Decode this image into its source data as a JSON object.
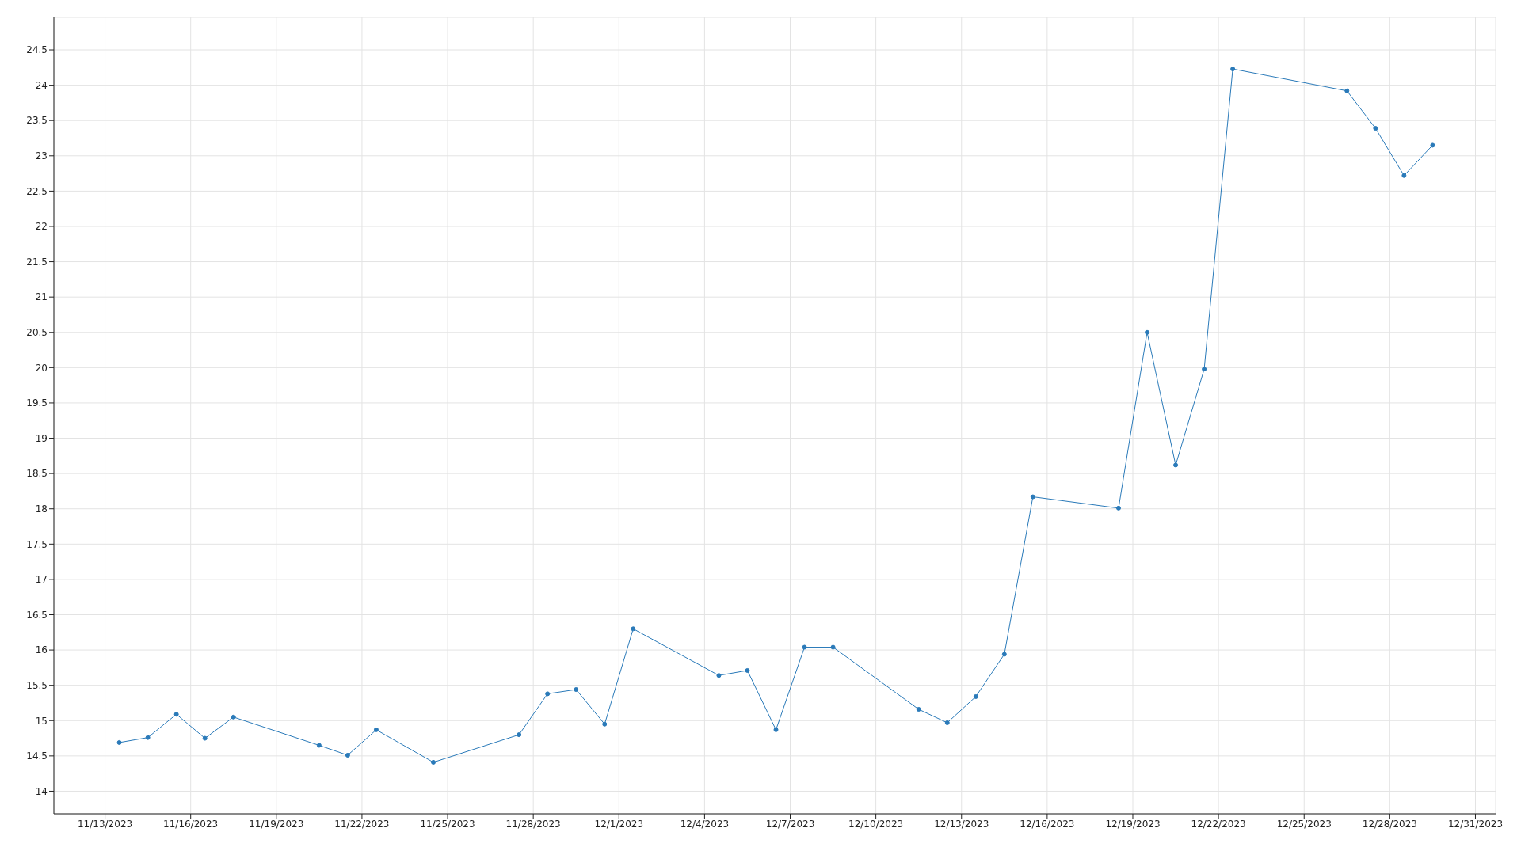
{
  "chart_data": {
    "type": "line",
    "x": [
      "2023-11-13T12:00",
      "2023-11-14T12:00",
      "2023-11-15T12:00",
      "2023-11-16T12:00",
      "2023-11-17T12:00",
      "2023-11-20T12:00",
      "2023-11-21T12:00",
      "2023-11-22T12:00",
      "2023-11-24T12:00",
      "2023-11-27T12:00",
      "2023-11-28T12:00",
      "2023-11-29T12:00",
      "2023-11-30T12:00",
      "2023-12-01T12:00",
      "2023-12-04T12:00",
      "2023-12-05T12:00",
      "2023-12-06T12:00",
      "2023-12-07T12:00",
      "2023-12-08T12:00",
      "2023-12-11T12:00",
      "2023-12-12T12:00",
      "2023-12-13T12:00",
      "2023-12-14T12:00",
      "2023-12-15T12:00",
      "2023-12-18T12:00",
      "2023-12-19T12:00",
      "2023-12-20T12:00",
      "2023-12-21T12:00",
      "2023-12-22T12:00",
      "2023-12-26T12:00",
      "2023-12-27T12:00",
      "2023-12-28T12:00",
      "2023-12-29T12:00"
    ],
    "series": [
      {
        "color": "#2a7ab9",
        "values": [
          14.69,
          14.76,
          15.09,
          14.75,
          15.05,
          14.65,
          14.51,
          14.87,
          14.41,
          14.8,
          15.38,
          15.44,
          14.95,
          16.3,
          15.64,
          15.71,
          14.87,
          16.04,
          16.04,
          15.16,
          14.97,
          15.34,
          15.94,
          18.17,
          18.01,
          20.5,
          18.62,
          19.98,
          24.23,
          23.92,
          23.39,
          22.72,
          23.15
        ]
      }
    ],
    "xlim": [
      "2023-11-11T05:00",
      "2023-12-31T17:00"
    ],
    "xticks": [
      {
        "value": "2023-11-13",
        "label": "11/13/2023"
      },
      {
        "value": "2023-11-16",
        "label": "11/16/2023"
      },
      {
        "value": "2023-11-19",
        "label": "11/19/2023"
      },
      {
        "value": "2023-11-22",
        "label": "11/22/2023"
      },
      {
        "value": "2023-11-25",
        "label": "11/25/2023"
      },
      {
        "value": "2023-11-28",
        "label": "11/28/2023"
      },
      {
        "value": "2023-12-01",
        "label": "12/1/2023"
      },
      {
        "value": "2023-12-04",
        "label": "12/4/2023"
      },
      {
        "value": "2023-12-07",
        "label": "12/7/2023"
      },
      {
        "value": "2023-12-10",
        "label": "12/10/2023"
      },
      {
        "value": "2023-12-13",
        "label": "12/13/2023"
      },
      {
        "value": "2023-12-16",
        "label": "12/16/2023"
      },
      {
        "value": "2023-12-19",
        "label": "12/19/2023"
      },
      {
        "value": "2023-12-22",
        "label": "12/22/2023"
      },
      {
        "value": "2023-12-25",
        "label": "12/25/2023"
      },
      {
        "value": "2023-12-28",
        "label": "12/28/2023"
      },
      {
        "value": "2023-12-31",
        "label": "12/31/2023"
      }
    ],
    "ylim": [
      13.68,
      24.96
    ],
    "yticks": [
      14,
      14.5,
      15,
      15.5,
      16,
      16.5,
      17,
      17.5,
      18,
      18.5,
      19,
      19.5,
      20,
      20.5,
      21,
      21.5,
      22,
      22.5,
      23,
      23.5,
      24,
      24.5
    ],
    "grid": true,
    "marker": "circle",
    "line_style": "solid",
    "legend": false
  }
}
